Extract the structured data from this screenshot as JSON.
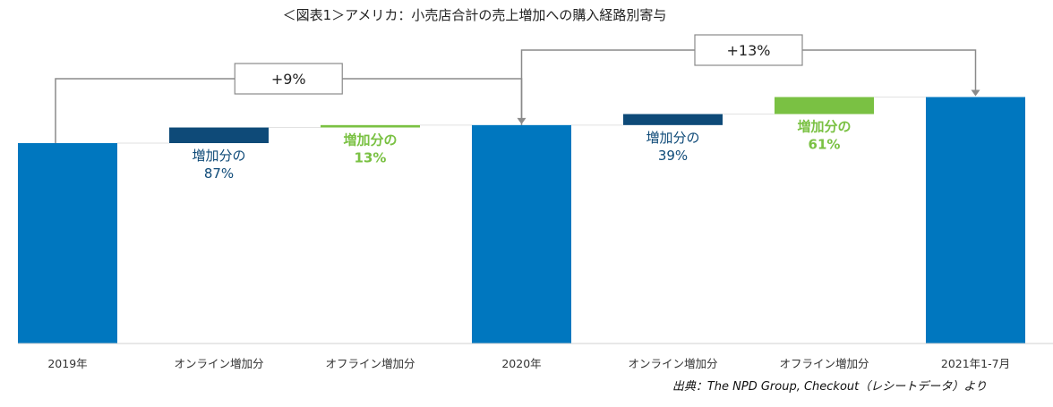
{
  "colors": {
    "total": "#0077bf",
    "online": "#0e4a78",
    "offline": "#7ac143",
    "axis": "#d0d0d0",
    "connector": "#8a8a8a"
  },
  "chart_data": {
    "type": "waterfall",
    "title": "＜図表1＞アメリカ：小売店合計の売上増加への購入経路別寄与",
    "categories": [
      "2019年",
      "オンライン増加分",
      "オフライン増加分",
      "2020年",
      "オンライン増加分",
      "オフライン増加分",
      "2021年1-7月"
    ],
    "values": [
      100,
      7.8,
      1.2,
      109,
      5.5,
      8.5,
      123
    ],
    "kinds": [
      "total",
      "online",
      "offline",
      "total",
      "online",
      "offline",
      "total"
    ],
    "bar_labels": [
      {
        "index": 1,
        "line1": "増加分の",
        "line2": "87%",
        "style": "dark"
      },
      {
        "index": 2,
        "line1": "増加分の",
        "line2": "13%",
        "style": "green"
      },
      {
        "index": 4,
        "line1": "増加分の",
        "line2": "39%",
        "style": "dark"
      },
      {
        "index": 5,
        "line1": "増加分の",
        "line2": "61%",
        "style": "green"
      }
    ],
    "growth_annotations": [
      {
        "from": 0,
        "to": 3,
        "label": "+9%"
      },
      {
        "from": 3,
        "to": 6,
        "label": "+13%"
      }
    ],
    "source": "出典：The NPD Group, Checkout（レシートデータ）より"
  }
}
